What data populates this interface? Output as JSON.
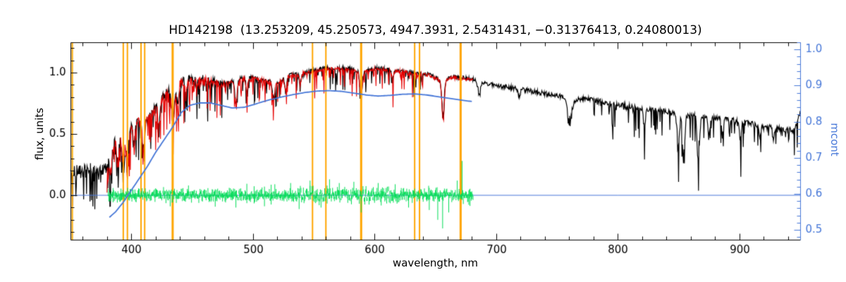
{
  "chart_data": {
    "type": "line",
    "title": "HD142198  (13.253209, 45.250573, 4947.3931, 2.5431431, −0.31376413, 0.24080013)",
    "star_id": "HD142198",
    "title_values": [
      "13.253209",
      "45.250573",
      "4947.3931",
      "2.5431431",
      "−0.31376413",
      "0.24080013"
    ],
    "xlabel": "wavelength, nm",
    "ylabel_left": "flux, units",
    "ylabel_right": "mcont",
    "x_range": [
      350,
      950
    ],
    "y_left_range": [
      -0.362,
      1.247
    ],
    "y_right_range": [
      0.473,
      1.02
    ],
    "x_major_ticks": [
      400,
      500,
      600,
      700,
      800,
      900
    ],
    "x_minor_step": 20,
    "y_left_major_ticks": [
      0.0,
      0.5,
      1.0
    ],
    "y_left_minor_step": 0.1,
    "y_right_major_ticks": [
      0.5,
      0.6,
      0.7,
      0.8,
      0.9,
      1.0
    ],
    "y_right_minor_step": 0.02,
    "grid": false,
    "legend": "none",
    "noise_seed": 20,
    "colors": {
      "observed": "#000000",
      "fit": "#e60000",
      "mcont": "#4677d8",
      "residual": "#00dd55",
      "mask": "#ffa500",
      "axis": "#000000",
      "background": "#ffffff"
    },
    "mask_lines": [
      {
        "wavelength": 351.5,
        "width": 2
      },
      {
        "wavelength": 393.4,
        "width": 2
      },
      {
        "wavelength": 396.8,
        "width": 2
      },
      {
        "wavelength": 408.0,
        "width": 2
      },
      {
        "wavelength": 411.0,
        "width": 2
      },
      {
        "wavelength": 434.0,
        "width": 3
      },
      {
        "wavelength": 549.0,
        "width": 2
      },
      {
        "wavelength": 560.0,
        "width": 2
      },
      {
        "wavelength": 589.0,
        "width": 3
      },
      {
        "wavelength": 633.0,
        "width": 2
      },
      {
        "wavelength": 637.0,
        "width": 2
      },
      {
        "wavelength": 670.8,
        "width": 3
      }
    ],
    "absorption_lines": [
      {
        "wl": 383.0,
        "d": 0.18,
        "w": 1.2
      },
      {
        "wl": 389.0,
        "d": 0.2,
        "w": 1.2
      },
      {
        "wl": 393.4,
        "d": 0.3,
        "w": 1.5
      },
      {
        "wl": 396.8,
        "d": 0.3,
        "w": 1.5
      },
      {
        "wl": 402.0,
        "d": 0.15,
        "w": 1.0
      },
      {
        "wl": 410.2,
        "d": 0.22,
        "w": 1.2
      },
      {
        "wl": 422.7,
        "d": 0.18,
        "w": 1.0
      },
      {
        "wl": 434.0,
        "d": 0.26,
        "w": 1.4
      },
      {
        "wl": 438.3,
        "d": 0.15,
        "w": 1.0
      },
      {
        "wl": 445.0,
        "d": 0.12,
        "w": 1.0
      },
      {
        "wl": 486.1,
        "d": 0.22,
        "w": 1.3
      },
      {
        "wl": 495.0,
        "d": 0.1,
        "w": 1.0
      },
      {
        "wl": 517.0,
        "d": 0.13,
        "w": 1.5
      },
      {
        "wl": 527.0,
        "d": 0.12,
        "w": 1.0
      },
      {
        "wl": 539.0,
        "d": 0.08,
        "w": 1.0
      },
      {
        "wl": 589.0,
        "d": 0.2,
        "w": 1.5
      },
      {
        "wl": 615.0,
        "d": 0.08,
        "w": 1.0
      },
      {
        "wl": 656.3,
        "d": 0.3,
        "w": 1.4
      },
      {
        "wl": 686.0,
        "d": 0.12,
        "w": 1.5
      },
      {
        "wl": 719.0,
        "d": 0.07,
        "w": 1.2
      },
      {
        "wl": 760.5,
        "d": 0.2,
        "w": 2.5
      },
      {
        "wl": 822.0,
        "d": 0.12,
        "w": 1.2
      },
      {
        "wl": 849.8,
        "d": 0.3,
        "w": 1.2
      },
      {
        "wl": 854.2,
        "d": 0.38,
        "w": 1.3
      },
      {
        "wl": 866.2,
        "d": 0.34,
        "w": 1.3
      },
      {
        "wl": 875.0,
        "d": 0.15,
        "w": 1.0
      },
      {
        "wl": 886.0,
        "d": 0.12,
        "w": 1.0
      },
      {
        "wl": 901.0,
        "d": 0.15,
        "w": 1.0
      },
      {
        "wl": 917.0,
        "d": 0.1,
        "w": 1.0
      },
      {
        "wl": 928.0,
        "d": 0.1,
        "w": 1.0
      }
    ],
    "series": [
      {
        "name": "observed_spectrum",
        "color_key": "observed",
        "axis": "left",
        "x_start": 350,
        "x_end": 950,
        "x": [
          350,
          358,
          366,
          372,
          378,
          381,
          384,
          388,
          392,
          396,
          400,
          405,
          410,
          415,
          420,
          426,
          432,
          436,
          440,
          446,
          452,
          460,
          468,
          476,
          484,
          492,
          500,
          510,
          520,
          530,
          540,
          550,
          560,
          570,
          580,
          590,
          600,
          610,
          620,
          632,
          644,
          656,
          663,
          670,
          680,
          692,
          704,
          716,
          728,
          740,
          752,
          764,
          776,
          788,
          800,
          812,
          824,
          836,
          848,
          860,
          872,
          884,
          896,
          908,
          920,
          932,
          940,
          946,
          950
        ],
        "y": [
          0.18,
          0.21,
          0.23,
          0.24,
          0.2,
          0.28,
          0.38,
          0.45,
          0.5,
          0.55,
          0.58,
          0.62,
          0.6,
          0.66,
          0.72,
          0.8,
          0.87,
          0.83,
          0.92,
          0.95,
          0.93,
          0.95,
          0.93,
          0.92,
          0.94,
          0.96,
          0.96,
          0.94,
          0.92,
          0.98,
          1.0,
          1.02,
          1.04,
          1.035,
          1.03,
          1.01,
          1.04,
          1.03,
          1.02,
          1.0,
          0.99,
          0.93,
          0.97,
          0.96,
          0.95,
          0.91,
          0.89,
          0.87,
          0.85,
          0.83,
          0.81,
          0.78,
          0.79,
          0.76,
          0.74,
          0.72,
          0.7,
          0.69,
          0.67,
          0.65,
          0.645,
          0.63,
          0.61,
          0.59,
          0.57,
          0.55,
          0.53,
          0.55,
          0.7
        ]
      },
      {
        "name": "fitted_spectrum",
        "color_key": "fit",
        "axis": "left",
        "base": "observed_spectrum",
        "offset": -0.008,
        "x_start": 380,
        "x_end": 681
      },
      {
        "name": "continuum_ratio",
        "color_key": "mcont",
        "axis": "right",
        "x": [
          382,
          387,
          393,
          399,
          406,
          413,
          420,
          427,
          434,
          441,
          448,
          456,
          465,
          474,
          483,
          493,
          503,
          513,
          523,
          533,
          543,
          553,
          563,
          573,
          583,
          593,
          603,
          613,
          623,
          633,
          643,
          653,
          663,
          673,
          680
        ],
        "y": [
          0.535,
          0.55,
          0.575,
          0.605,
          0.64,
          0.675,
          0.715,
          0.75,
          0.785,
          0.825,
          0.845,
          0.852,
          0.852,
          0.845,
          0.838,
          0.84,
          0.85,
          0.86,
          0.868,
          0.875,
          0.881,
          0.885,
          0.886,
          0.884,
          0.879,
          0.874,
          0.871,
          0.873,
          0.876,
          0.877,
          0.874,
          0.869,
          0.864,
          0.859,
          0.856
        ]
      },
      {
        "name": "residual",
        "color_key": "residual",
        "axis": "left",
        "baseline": 0,
        "x_start": 381,
        "x_end": 681,
        "noise": 0.03,
        "spikes": [
          {
            "wavelength": 432,
            "value": -0.09
          },
          {
            "wavelength": 447,
            "value": 0.08
          },
          {
            "wavelength": 486,
            "value": -0.1
          },
          {
            "wavelength": 518,
            "value": 0.09
          },
          {
            "wavelength": 531,
            "value": 0.1
          },
          {
            "wavelength": 547,
            "value": 0.12
          },
          {
            "wavelength": 556,
            "value": -0.1
          },
          {
            "wavelength": 563,
            "value": 0.13
          },
          {
            "wavelength": 571,
            "value": 0.1
          },
          {
            "wavelength": 583,
            "value": 0.11
          },
          {
            "wavelength": 589,
            "value": -0.14
          },
          {
            "wavelength": 603,
            "value": 0.1
          },
          {
            "wavelength": 617,
            "value": 0.09
          },
          {
            "wavelength": 628,
            "value": -0.1
          },
          {
            "wavelength": 645,
            "value": -0.12
          },
          {
            "wavelength": 652,
            "value": -0.2
          },
          {
            "wavelength": 656,
            "value": -0.27
          },
          {
            "wavelength": 661,
            "value": -0.14
          },
          {
            "wavelength": 668,
            "value": 0.12
          },
          {
            "wavelength": 672,
            "value": 0.28
          }
        ]
      },
      {
        "name": "zero_line",
        "color_key": "mcont",
        "axis": "left",
        "y_value": 0,
        "x_start": 350,
        "x_end": 950
      }
    ]
  }
}
